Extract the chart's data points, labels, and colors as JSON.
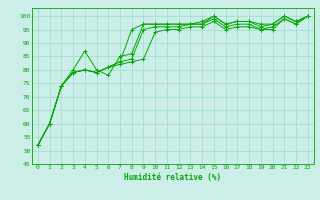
{
  "xlabel": "Humidité relative (%)",
  "bg_color": "#cceee8",
  "grid_color": "#99ddcc",
  "line_color": "#00aa00",
  "xlim": [
    -0.5,
    23.5
  ],
  "ylim": [
    45,
    103
  ],
  "xticks": [
    0,
    1,
    2,
    3,
    4,
    5,
    6,
    7,
    8,
    9,
    10,
    11,
    12,
    13,
    14,
    15,
    16,
    17,
    18,
    19,
    20,
    21,
    22,
    23
  ],
  "yticks": [
    45,
    50,
    55,
    60,
    65,
    70,
    75,
    80,
    85,
    90,
    95,
    100
  ],
  "series": [
    [
      52,
      60,
      74,
      80,
      87,
      80,
      78,
      85,
      86,
      97,
      97,
      97,
      97,
      97,
      97,
      100,
      97,
      98,
      98,
      97,
      97,
      100,
      98,
      100
    ],
    [
      52,
      60,
      74,
      79,
      80,
      79,
      81,
      83,
      95,
      97,
      97,
      97,
      97,
      97,
      98,
      100,
      97,
      98,
      98,
      96,
      97,
      100,
      98,
      100
    ],
    [
      52,
      60,
      74,
      79,
      80,
      79,
      81,
      83,
      84,
      95,
      96,
      96,
      96,
      97,
      97,
      99,
      96,
      97,
      97,
      95,
      96,
      99,
      97,
      100
    ],
    [
      52,
      60,
      74,
      79,
      80,
      79,
      81,
      82,
      83,
      84,
      94,
      95,
      95,
      96,
      96,
      98,
      95,
      96,
      96,
      95,
      95,
      99,
      97,
      100
    ]
  ]
}
